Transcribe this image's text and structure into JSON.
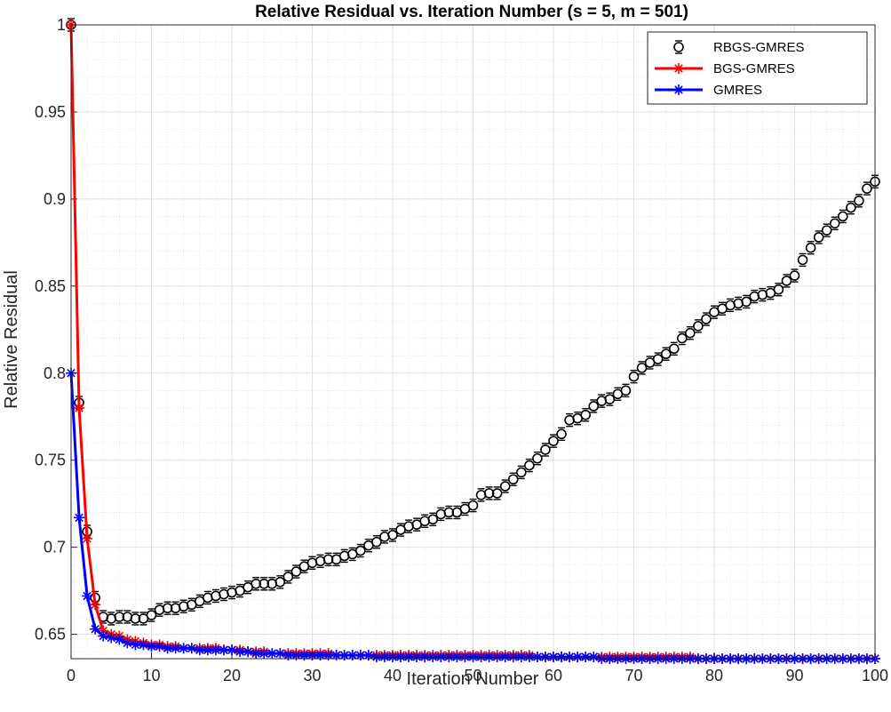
{
  "chart_data": {
    "type": "line",
    "title": "Relative Residual vs. Iteration Number (s = 5, m = 501)",
    "xlabel": "Iteration Number",
    "ylabel": "Relative Residual",
    "xlim": [
      0,
      100
    ],
    "ylim": [
      0.636,
      1.0
    ],
    "x_ticks": [
      "0",
      "10",
      "20",
      "30",
      "40",
      "50",
      "60",
      "70",
      "80",
      "90",
      "100"
    ],
    "y_ticks": [
      "0.65",
      "0.7",
      "0.75",
      "0.8",
      "0.85",
      "0.9",
      "0.95",
      "1"
    ],
    "grid": "major and minor",
    "legend_position": "top-right",
    "series": [
      {
        "name": "RBGS-GMRES",
        "color": "#000000",
        "marker": "o",
        "errorbar": true,
        "x": [
          0,
          1,
          2,
          3,
          4,
          5,
          6,
          7,
          8,
          9,
          10,
          11,
          12,
          13,
          14,
          15,
          16,
          17,
          18,
          19,
          20,
          21,
          22,
          23,
          24,
          25,
          26,
          27,
          28,
          29,
          30,
          31,
          32,
          33,
          34,
          35,
          36,
          37,
          38,
          39,
          40,
          41,
          42,
          43,
          44,
          45,
          46,
          47,
          48,
          49,
          50,
          51,
          52,
          53,
          54,
          55,
          56,
          57,
          58,
          59,
          60,
          61,
          62,
          63,
          64,
          65,
          66,
          67,
          68,
          69,
          70,
          71,
          72,
          73,
          74,
          75,
          76,
          77,
          78,
          79,
          80,
          81,
          82,
          83,
          84,
          85,
          86,
          87,
          88,
          89,
          90,
          91,
          92,
          93,
          94,
          95,
          96,
          97,
          98,
          99,
          100
        ],
        "y": [
          1.0,
          0.783,
          0.709,
          0.671,
          0.66,
          0.659,
          0.66,
          0.66,
          0.659,
          0.659,
          0.661,
          0.664,
          0.665,
          0.665,
          0.666,
          0.667,
          0.669,
          0.671,
          0.672,
          0.673,
          0.674,
          0.675,
          0.677,
          0.679,
          0.679,
          0.679,
          0.68,
          0.683,
          0.686,
          0.689,
          0.691,
          0.692,
          0.693,
          0.693,
          0.695,
          0.696,
          0.698,
          0.701,
          0.703,
          0.706,
          0.707,
          0.71,
          0.712,
          0.713,
          0.715,
          0.716,
          0.719,
          0.72,
          0.72,
          0.722,
          0.724,
          0.73,
          0.731,
          0.731,
          0.735,
          0.739,
          0.743,
          0.747,
          0.751,
          0.756,
          0.761,
          0.765,
          0.773,
          0.774,
          0.776,
          0.781,
          0.784,
          0.785,
          0.788,
          0.79,
          0.798,
          0.803,
          0.806,
          0.808,
          0.811,
          0.814,
          0.82,
          0.823,
          0.827,
          0.831,
          0.835,
          0.837,
          0.839,
          0.84,
          0.841,
          0.844,
          0.845,
          0.846,
          0.848,
          0.853,
          0.856,
          0.865,
          0.872,
          0.878,
          0.882,
          0.886,
          0.89,
          0.895,
          0.899,
          0.906,
          0.91
        ]
      },
      {
        "name": "BGS-GMRES",
        "color": "#ff0000",
        "marker": "*",
        "x": [
          0,
          1,
          2,
          3,
          4,
          5,
          6,
          7,
          8,
          9,
          10,
          11,
          12,
          13,
          14,
          15,
          16,
          17,
          18,
          19,
          20,
          21,
          22,
          23,
          24,
          25,
          26,
          27,
          28,
          29,
          30,
          31,
          32,
          33,
          34,
          35,
          36,
          37,
          38,
          39,
          40,
          41,
          42,
          43,
          44,
          45,
          46,
          47,
          48,
          49,
          50,
          51,
          52,
          53,
          54,
          55,
          56,
          57,
          58,
          59,
          60,
          61,
          62,
          63,
          64,
          65,
          66,
          67,
          68,
          69,
          70,
          71,
          72,
          73,
          74,
          75,
          76,
          77,
          78,
          79,
          80,
          81,
          82,
          83,
          84,
          85,
          86,
          87,
          88,
          89,
          90,
          91,
          92,
          93,
          94,
          95,
          96,
          97,
          98,
          99,
          100
        ],
        "y": [
          1.0,
          0.78,
          0.705,
          0.667,
          0.652,
          0.65,
          0.649,
          0.647,
          0.646,
          0.645,
          0.644,
          0.644,
          0.643,
          0.643,
          0.642,
          0.642,
          0.642,
          0.642,
          0.642,
          0.641,
          0.641,
          0.641,
          0.64,
          0.64,
          0.64,
          0.639,
          0.639,
          0.639,
          0.639,
          0.639,
          0.639,
          0.639,
          0.639,
          0.638,
          0.638,
          0.638,
          0.638,
          0.638,
          0.638,
          0.638,
          0.638,
          0.638,
          0.638,
          0.638,
          0.638,
          0.638,
          0.638,
          0.638,
          0.638,
          0.638,
          0.638,
          0.638,
          0.638,
          0.638,
          0.638,
          0.638,
          0.638,
          0.638,
          0.637,
          0.637,
          0.637,
          0.637,
          0.637,
          0.637,
          0.637,
          0.637,
          0.637,
          0.637,
          0.637,
          0.637,
          0.637,
          0.637,
          0.637,
          0.637,
          0.637,
          0.637,
          0.637,
          0.637,
          0.636,
          0.636,
          0.636,
          0.636,
          0.636,
          0.636,
          0.636,
          0.636,
          0.636,
          0.636,
          0.636,
          0.636,
          0.636,
          0.636,
          0.636,
          0.636,
          0.636,
          0.636,
          0.636,
          0.636,
          0.636,
          0.636,
          0.636
        ]
      },
      {
        "name": "GMRES",
        "color": "#0000ff",
        "marker": "*",
        "x": [
          0,
          1,
          2,
          3,
          4,
          5,
          6,
          7,
          8,
          9,
          10,
          11,
          12,
          13,
          14,
          15,
          16,
          17,
          18,
          19,
          20,
          21,
          22,
          23,
          24,
          25,
          26,
          27,
          28,
          29,
          30,
          31,
          32,
          33,
          34,
          35,
          36,
          37,
          38,
          39,
          40,
          41,
          42,
          43,
          44,
          45,
          46,
          47,
          48,
          49,
          50,
          51,
          52,
          53,
          54,
          55,
          56,
          57,
          58,
          59,
          60,
          61,
          62,
          63,
          64,
          65,
          66,
          67,
          68,
          69,
          70,
          71,
          72,
          73,
          74,
          75,
          76,
          77,
          78,
          79,
          80,
          81,
          82,
          83,
          84,
          85,
          86,
          87,
          88,
          89,
          90,
          91,
          92,
          93,
          94,
          95,
          96,
          97,
          98,
          99,
          100
        ],
        "y": [
          0.8,
          0.717,
          0.672,
          0.653,
          0.649,
          0.648,
          0.647,
          0.645,
          0.644,
          0.644,
          0.643,
          0.643,
          0.642,
          0.642,
          0.642,
          0.642,
          0.641,
          0.641,
          0.641,
          0.641,
          0.641,
          0.64,
          0.64,
          0.639,
          0.639,
          0.639,
          0.639,
          0.638,
          0.638,
          0.638,
          0.638,
          0.638,
          0.638,
          0.638,
          0.638,
          0.638,
          0.638,
          0.638,
          0.637,
          0.637,
          0.637,
          0.637,
          0.637,
          0.637,
          0.637,
          0.637,
          0.637,
          0.637,
          0.637,
          0.637,
          0.637,
          0.637,
          0.637,
          0.637,
          0.637,
          0.637,
          0.637,
          0.637,
          0.637,
          0.637,
          0.637,
          0.637,
          0.637,
          0.637,
          0.637,
          0.637,
          0.636,
          0.636,
          0.636,
          0.636,
          0.636,
          0.636,
          0.636,
          0.636,
          0.636,
          0.636,
          0.636,
          0.636,
          0.636,
          0.636,
          0.636,
          0.636,
          0.636,
          0.636,
          0.636,
          0.636,
          0.636,
          0.636,
          0.636,
          0.636,
          0.636,
          0.636,
          0.636,
          0.636,
          0.636,
          0.636,
          0.636,
          0.636,
          0.636,
          0.636,
          0.636
        ]
      }
    ]
  }
}
